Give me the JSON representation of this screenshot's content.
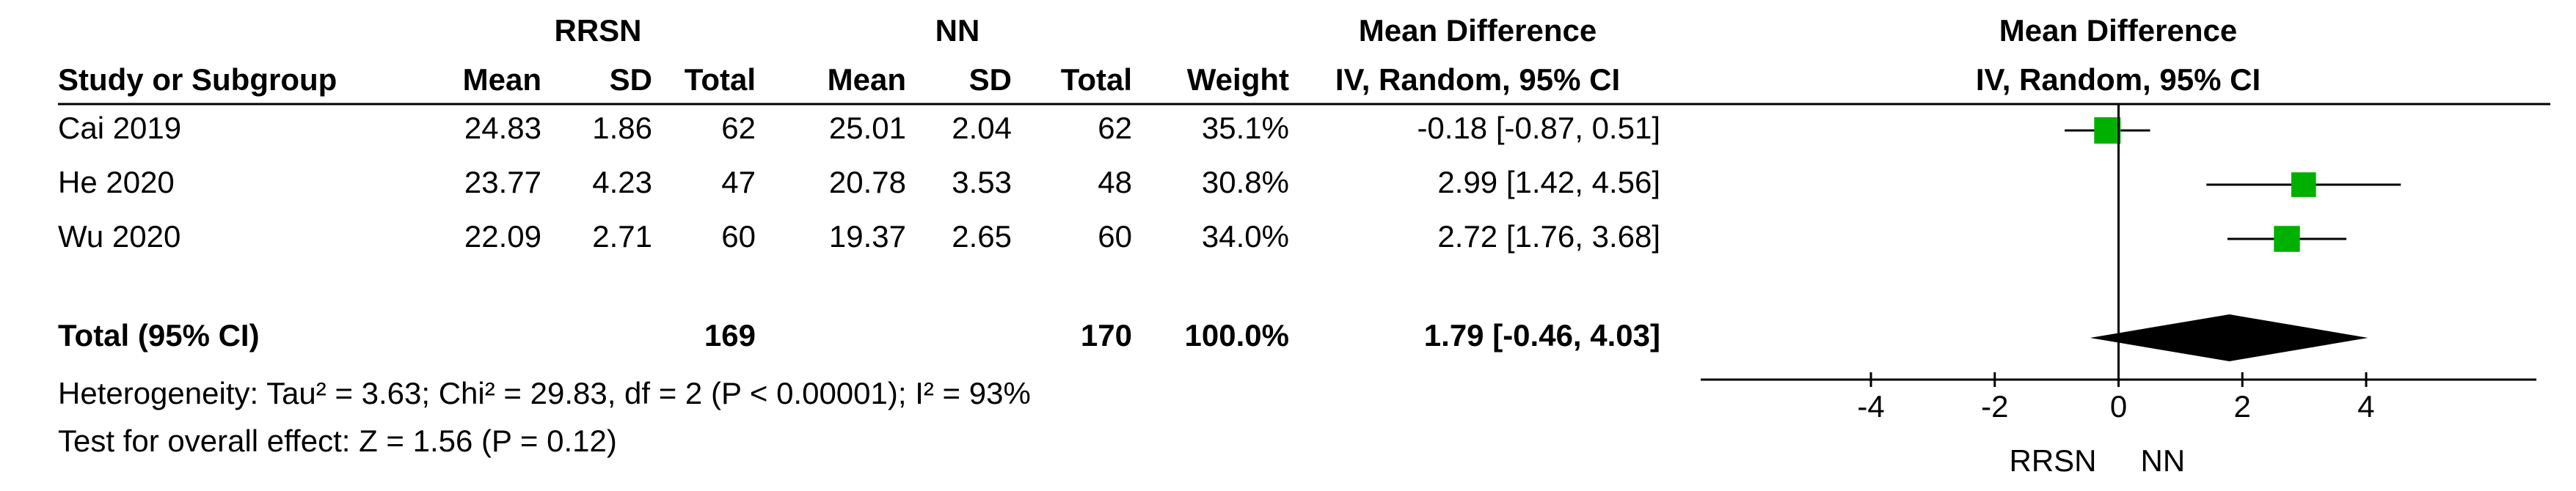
{
  "chart_data": {
    "type": "forest",
    "group_headers": [
      "RRSN",
      "NN",
      "Mean Difference",
      "Mean Difference"
    ],
    "method_headers": [
      "IV, Random, 95% CI",
      "IV, Random, 95% CI"
    ],
    "columns": [
      "Study or Subgroup",
      "Mean",
      "SD",
      "Total",
      "Mean",
      "SD",
      "Total",
      "Weight"
    ],
    "studies": [
      "Cai 2019",
      "He 2020",
      "Wu 2020"
    ],
    "rrsn_mean": [
      24.83,
      23.77,
      22.09
    ],
    "rrsn_sd": [
      1.86,
      4.23,
      2.71
    ],
    "rrsn_total": [
      62,
      47,
      60
    ],
    "nn_mean": [
      25.01,
      20.78,
      19.37
    ],
    "nn_sd": [
      2.04,
      3.53,
      2.65
    ],
    "nn_total": [
      62,
      48,
      60
    ],
    "weight": [
      35.1,
      30.8,
      34.0
    ],
    "weight_labels": [
      "35.1%",
      "30.8%",
      "34.0%"
    ],
    "values": [
      -0.18,
      2.99,
      2.72
    ],
    "lo": [
      -0.87,
      1.42,
      1.76
    ],
    "hi": [
      0.51,
      4.56,
      3.68
    ],
    "value_labels": [
      "-0.18 [-0.87, 0.51]",
      "2.99 [1.42, 4.56]",
      "2.72 [1.76, 3.68]"
    ],
    "total": {
      "label": "Total (95% CI)",
      "rrsn_total": 169,
      "nn_total": 170,
      "weight": 100,
      "weight_label": "100.0%",
      "value": 1.79,
      "lo": -0.46,
      "hi": 4.03,
      "value_label": "1.79 [-0.46, 4.03]"
    },
    "heterogeneity": "Heterogeneity: Tau² = 3.63; Chi² = 29.83, df = 2 (P < 0.00001); I² = 93%",
    "overall_effect": "Test for overall effect: Z = 1.56 (P = 0.12)",
    "xlim": [
      -6.75,
      6.75
    ],
    "xticks": [
      -4,
      -2,
      0,
      2,
      4
    ],
    "favours": [
      "RRSN",
      "NN"
    ],
    "marker_color": "#00b000"
  }
}
